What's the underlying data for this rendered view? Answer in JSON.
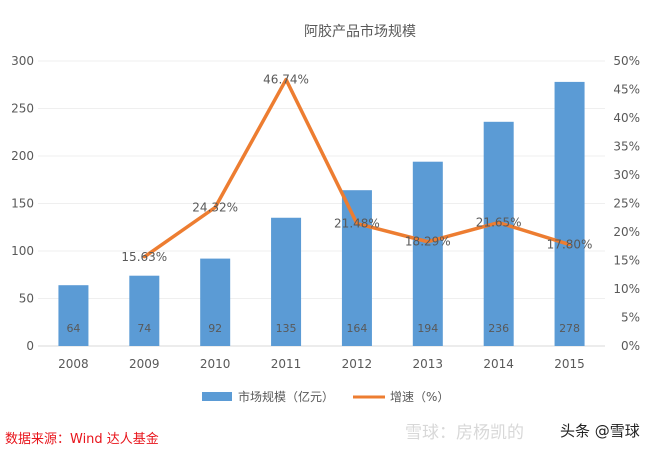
{
  "chart_data": {
    "type": "bar+line",
    "title": "阿胶产品市场规模",
    "categories": [
      "2008",
      "2009",
      "2010",
      "2011",
      "2012",
      "2013",
      "2014",
      "2015"
    ],
    "series": [
      {
        "name": "市场规模（亿元）",
        "type": "bar",
        "axis": "left",
        "values": [
          64,
          74,
          92,
          135,
          164,
          194,
          236,
          278
        ],
        "labels": [
          "64",
          "74",
          "92",
          "135",
          "164",
          "194",
          "236",
          "278"
        ]
      },
      {
        "name": "增速（%）",
        "type": "line",
        "axis": "right",
        "values": [
          null,
          15.63,
          24.32,
          46.74,
          21.48,
          18.29,
          21.65,
          17.8
        ],
        "labels": [
          "",
          "15.63%",
          "24.32%",
          "46.74%",
          "21.48%",
          "18.29%",
          "21.65%",
          "17.80%"
        ]
      }
    ],
    "ylim": [
      0,
      300
    ],
    "yticks": [
      "0",
      "50",
      "100",
      "150",
      "200",
      "250",
      "300"
    ],
    "y2lim": [
      0,
      50
    ],
    "y2ticks": [
      "0%",
      "5%",
      "10%",
      "15%",
      "20%",
      "25%",
      "30%",
      "35%",
      "40%",
      "45%",
      "50%"
    ],
    "grid": true,
    "legend": "bottom",
    "colors": {
      "bar": "#5b9bd5",
      "line": "#ed7d31"
    }
  },
  "footer": {
    "source": "数据来源：Wind  达人基金",
    "watermark": "雪球：房杨凯的",
    "watermark2": "头条 @雪球"
  }
}
